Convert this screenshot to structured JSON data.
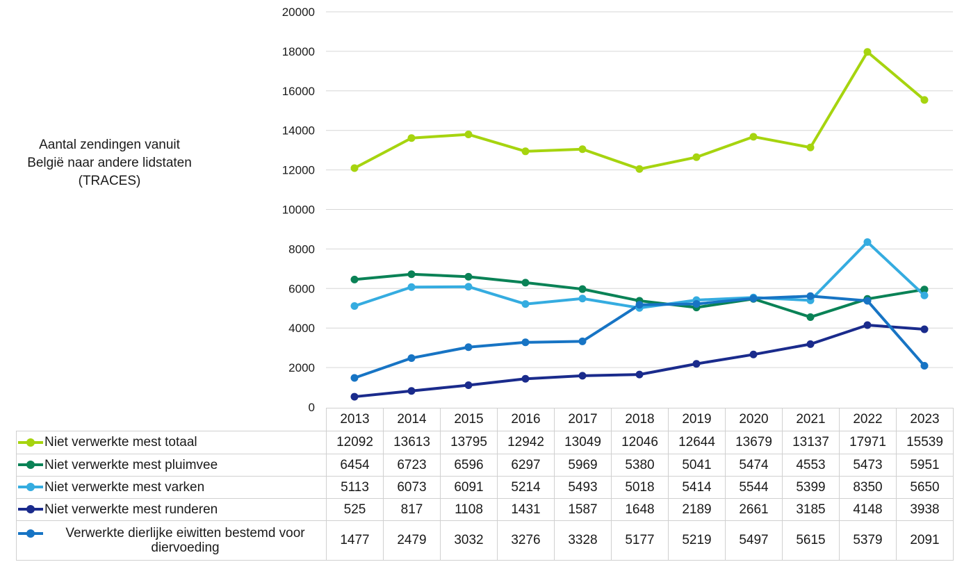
{
  "chart_data": {
    "type": "line",
    "ylabel": "Aantal zendingen vanuit België naar andere lidstaten (TRACES)",
    "ylim": [
      0,
      20000
    ],
    "yticks": [
      0,
      2000,
      4000,
      6000,
      8000,
      10000,
      12000,
      14000,
      16000,
      18000,
      20000
    ],
    "grid": true,
    "legend_position": "data-table",
    "categories": [
      "2013",
      "2014",
      "2015",
      "2016",
      "2017",
      "2018",
      "2019",
      "2020",
      "2021",
      "2022",
      "2023"
    ],
    "series": [
      {
        "name": "Niet verwerkte mest totaal",
        "color": "#a6d40f",
        "values": [
          12092,
          13613,
          13795,
          12942,
          13049,
          12046,
          12644,
          13679,
          13137,
          17971,
          15539
        ]
      },
      {
        "name": "Niet verwerkte mest pluimvee",
        "color": "#0a8256",
        "values": [
          6454,
          6723,
          6596,
          6297,
          5969,
          5380,
          5041,
          5474,
          4553,
          5473,
          5951
        ]
      },
      {
        "name": "Niet verwerkte mest varken",
        "color": "#35ace0",
        "values": [
          5113,
          6073,
          6091,
          5214,
          5493,
          5018,
          5414,
          5544,
          5399,
          8350,
          5650
        ]
      },
      {
        "name": "Niet verwerkte mest runderen",
        "color": "#1a2b8c",
        "values": [
          525,
          817,
          1108,
          1431,
          1587,
          1648,
          2189,
          2661,
          3185,
          4148,
          3938
        ]
      },
      {
        "name": "Verwerkte dierlijke eiwitten bestemd voor diervoeding",
        "color": "#1774c4",
        "values": [
          1477,
          2479,
          3032,
          3276,
          3328,
          5177,
          5219,
          5497,
          5615,
          5379,
          2091
        ]
      }
    ]
  }
}
